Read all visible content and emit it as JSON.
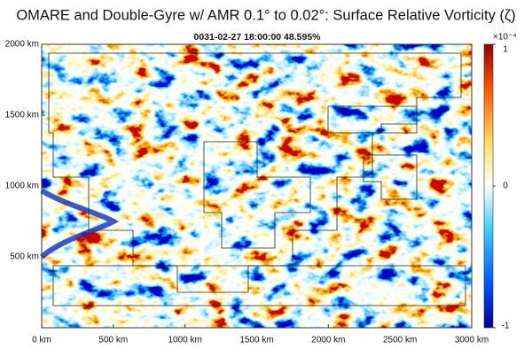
{
  "chart_data": {
    "type": "field",
    "title": "OMARE and Double-Gyre w/ AMR 0.1° to 0.02°: Surface Relative Vorticity (ζ)",
    "subtitle": "0031-02-27 18:00:00   48.595%",
    "xlim": [
      0,
      3000
    ],
    "ylim": [
      0,
      2000
    ],
    "xticks": [
      {
        "value": 0,
        "label": "0 km"
      },
      {
        "value": 500,
        "label": "500 km"
      },
      {
        "value": 1000,
        "label": "1000 km"
      },
      {
        "value": 1500,
        "label": "1500 km"
      },
      {
        "value": 2000,
        "label": "2000 km"
      },
      {
        "value": 2500,
        "label": "2500 km"
      },
      {
        "value": 3000,
        "label": "3000 km"
      }
    ],
    "yticks": [
      {
        "value": 500,
        "label": "500 km"
      },
      {
        "value": 1000,
        "label": "1000 km"
      },
      {
        "value": 1500,
        "label": "1500 km"
      },
      {
        "value": 2000,
        "label": "2000 km"
      }
    ],
    "colorbar": {
      "lim": [
        -0.0001,
        0.0001
      ],
      "scale_label": "×10⁻⁴",
      "ticks": [
        {
          "value": -0.0001,
          "label": "-1"
        },
        0,
        {
          "value": 0.0001,
          "label": "1"
        }
      ]
    }
  }
}
